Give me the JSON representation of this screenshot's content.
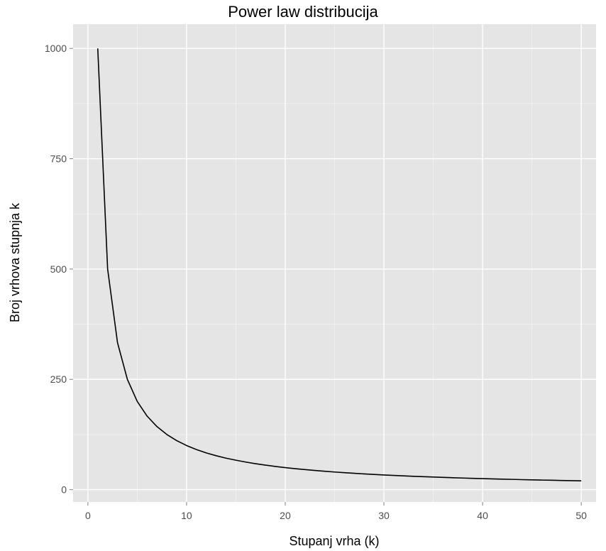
{
  "chart_data": {
    "type": "line",
    "title": "Power law distribucija",
    "xlabel": "Stupanj vrha (k)",
    "ylabel": "Broj vrhova stupnja k",
    "xlim": [
      -1.5,
      51.5
    ],
    "ylim": [
      -28,
      1055
    ],
    "x_ticks": [
      0,
      10,
      20,
      30,
      40,
      50
    ],
    "y_ticks": [
      0,
      250,
      500,
      750,
      1000
    ],
    "x_tick_labels": [
      "0",
      "10",
      "20",
      "30",
      "40",
      "50"
    ],
    "y_tick_labels": [
      "0",
      "250",
      "500",
      "750",
      "1000"
    ],
    "grid": true,
    "series": [
      {
        "color": "#000000",
        "x": [
          1,
          2,
          3,
          4,
          5,
          6,
          7,
          8,
          9,
          10,
          11,
          12,
          13,
          14,
          15,
          16,
          17,
          18,
          19,
          20,
          21,
          22,
          23,
          24,
          25,
          26,
          27,
          28,
          29,
          30,
          31,
          32,
          33,
          34,
          35,
          36,
          37,
          38,
          39,
          40,
          41,
          42,
          43,
          44,
          45,
          46,
          47,
          48,
          49,
          50
        ],
        "y": [
          1000,
          500,
          333.3,
          250,
          200,
          166.7,
          142.9,
          125,
          111.1,
          100,
          90.9,
          83.3,
          76.9,
          71.4,
          66.7,
          62.5,
          58.8,
          55.6,
          52.6,
          50,
          47.6,
          45.5,
          43.5,
          41.7,
          40,
          38.5,
          37,
          35.7,
          34.5,
          33.3,
          32.3,
          31.3,
          30.3,
          29.4,
          28.6,
          27.8,
          27,
          26.3,
          25.6,
          25,
          24.4,
          23.8,
          23.3,
          22.7,
          22.2,
          21.7,
          21.3,
          20.8,
          20.4,
          20
        ]
      }
    ]
  }
}
